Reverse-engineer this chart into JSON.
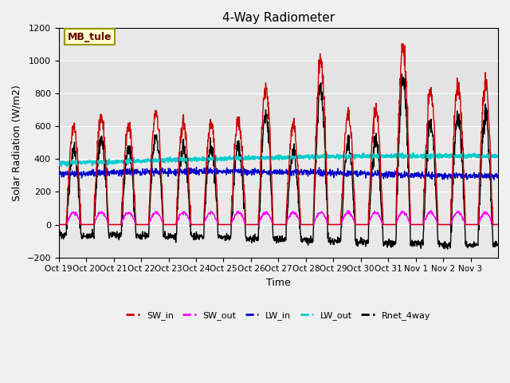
{
  "title": "4-Way Radiometer",
  "xlabel": "Time",
  "ylabel": "Solar Radiation (W/m2)",
  "ylim": [
    -200,
    1200
  ],
  "yticks": [
    -200,
    0,
    200,
    400,
    600,
    800,
    1000,
    1200
  ],
  "xtick_positions": [
    0,
    1,
    2,
    3,
    4,
    5,
    6,
    7,
    8,
    9,
    10,
    11,
    12,
    13,
    14,
    15
  ],
  "xtick_labels": [
    "Oct 19",
    "Oct 20",
    "Oct 21",
    "Oct 22",
    "Oct 23",
    "Oct 24",
    "Oct 25",
    "Oct 26",
    "Oct 27",
    "Oct 28",
    "Oct 29",
    "Oct 30",
    "Oct 31",
    "Nov 1",
    "Nov 2",
    "Nov 3"
  ],
  "annotation_text": "MB_tule",
  "lines": {
    "SW_in": {
      "color": "#cc0000",
      "lw": 1.0
    },
    "SW_out": {
      "color": "#ff00ff",
      "lw": 1.0
    },
    "LW_in": {
      "color": "#0000cc",
      "lw": 1.0
    },
    "LW_out": {
      "color": "#00cccc",
      "lw": 1.5
    },
    "Rnet_4way": {
      "color": "#000000",
      "lw": 1.0
    }
  },
  "legend_labels": [
    "SW_in",
    "SW_out",
    "LW_in",
    "LW_out",
    "Rnet_4way"
  ],
  "legend_colors": [
    "#cc0000",
    "#ff00ff",
    "#0000cc",
    "#00cccc",
    "#000000"
  ],
  "shaded_ymin": 600,
  "shaded_ymax": 1000,
  "bg_color": "#f0f0f0",
  "plot_bg_color": "#e8e8e8",
  "n_days": 16
}
